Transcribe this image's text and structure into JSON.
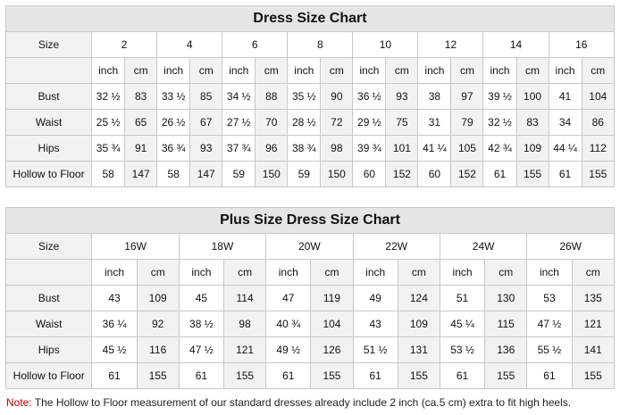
{
  "table1": {
    "title": "Dress Size Chart",
    "size_label": "Size",
    "sizes": [
      "2",
      "4",
      "6",
      "8",
      "10",
      "12",
      "14",
      "16"
    ],
    "unit_inch": "inch",
    "unit_cm": "cm",
    "rows": [
      {
        "label": "Bust",
        "values": [
          "32 ½",
          "83",
          "33 ½",
          "85",
          "34 ½",
          "88",
          "35 ½",
          "90",
          "36 ½",
          "93",
          "38",
          "97",
          "39 ½",
          "100",
          "41",
          "104"
        ]
      },
      {
        "label": "Waist",
        "values": [
          "25 ½",
          "65",
          "26 ½",
          "67",
          "27 ½",
          "70",
          "28 ½",
          "72",
          "29 ½",
          "75",
          "31",
          "79",
          "32 ½",
          "83",
          "34",
          "86"
        ]
      },
      {
        "label": "Hips",
        "values": [
          "35 ¾",
          "91",
          "36 ¾",
          "93",
          "37 ¾",
          "96",
          "38 ¾",
          "98",
          "39 ¾",
          "101",
          "41 ¼",
          "105",
          "42 ¾",
          "109",
          "44 ¼",
          "112"
        ]
      },
      {
        "label": "Hollow to Floor",
        "values": [
          "58",
          "147",
          "58",
          "147",
          "59",
          "150",
          "59",
          "150",
          "60",
          "152",
          "60",
          "152",
          "61",
          "155",
          "61",
          "155"
        ]
      }
    ]
  },
  "table2": {
    "title": "Plus Size Dress Size Chart",
    "size_label": "Size",
    "sizes": [
      "16W",
      "18W",
      "20W",
      "22W",
      "24W",
      "26W"
    ],
    "unit_inch": "inch",
    "unit_cm": "cm",
    "rows": [
      {
        "label": "Bust",
        "values": [
          "43",
          "109",
          "45",
          "114",
          "47",
          "119",
          "49",
          "124",
          "51",
          "130",
          "53",
          "135"
        ]
      },
      {
        "label": "Waist",
        "values": [
          "36 ¼",
          "92",
          "38 ½",
          "98",
          "40 ¾",
          "104",
          "43",
          "109",
          "45 ¼",
          "115",
          "47 ½",
          "121"
        ]
      },
      {
        "label": "Hips",
        "values": [
          "45 ½",
          "116",
          "47 ½",
          "121",
          "49 ½",
          "126",
          "51 ½",
          "131",
          "53 ½",
          "136",
          "55 ½",
          "141"
        ]
      },
      {
        "label": "Hollow to Floor",
        "values": [
          "61",
          "155",
          "61",
          "155",
          "61",
          "155",
          "61",
          "155",
          "61",
          "155",
          "61",
          "155"
        ]
      }
    ]
  },
  "note": {
    "label": "Note:",
    "text": " The Hollow to Floor measurement of our standard dresses already include 2 inch (ca.5 cm) extra to fit high heels."
  }
}
